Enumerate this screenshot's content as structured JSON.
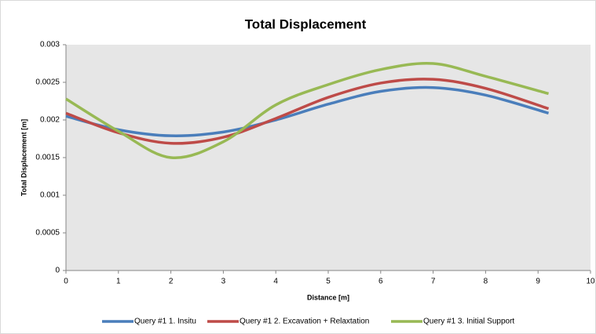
{
  "chart_data": {
    "type": "line",
    "title": "Total Displacement",
    "x_label": "Distance [m]",
    "y_label": "Total Displacement [m]",
    "x": [
      0,
      1,
      2,
      3,
      4,
      5,
      6,
      7,
      8,
      9.2
    ],
    "series": [
      {
        "name": "Query #1 1. Insitu",
        "color": "#4a7ebb",
        "values": [
          0.00205,
          0.00187,
          0.00179,
          0.00184,
          0.002,
          0.00221,
          0.00238,
          0.00243,
          0.00233,
          0.00209
        ]
      },
      {
        "name": "Query #1 2. Excavation + Relaxtation",
        "color": "#be4b48",
        "values": [
          0.00209,
          0.00183,
          0.00169,
          0.00177,
          0.00202,
          0.0023,
          0.00249,
          0.00254,
          0.00242,
          0.00215
        ]
      },
      {
        "name": "Query #1 3. Initial Support",
        "color": "#98b954",
        "values": [
          0.00228,
          0.00185,
          0.0015,
          0.00171,
          0.0022,
          0.00247,
          0.00267,
          0.00275,
          0.00258,
          0.00235
        ]
      }
    ],
    "xlim": [
      0,
      10
    ],
    "xticks": [
      0,
      1,
      2,
      3,
      4,
      5,
      6,
      7,
      8,
      9,
      10
    ],
    "ylim": [
      0,
      0.003
    ],
    "yticks": [
      0,
      0.0005,
      0.001,
      0.0015,
      0.002,
      0.0025,
      0.003
    ],
    "grid": false,
    "legend": "bottom",
    "plot_background": "#e6e6e6"
  }
}
